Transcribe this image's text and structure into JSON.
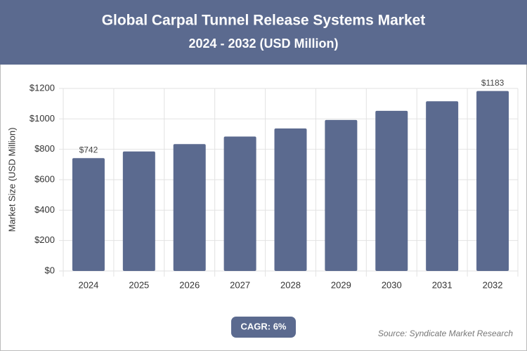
{
  "chart_data": {
    "type": "bar",
    "title": "Global Carpal Tunnel Release Systems Market",
    "subtitle": "2024 - 2032 (USD Million)",
    "y_label": "Market Size (USD Million)",
    "categories": [
      "2024",
      "2025",
      "2026",
      "2027",
      "2028",
      "2029",
      "2030",
      "2031",
      "2032"
    ],
    "values": [
      742,
      786,
      834,
      884,
      937,
      993,
      1053,
      1116,
      1183
    ],
    "value_labels": [
      "$742",
      null,
      null,
      null,
      null,
      null,
      null,
      null,
      "$1183"
    ],
    "color": "#5b6a8f",
    "ylim": [
      0,
      1200
    ],
    "yticks": [
      {
        "value": 0,
        "label": "$0"
      },
      {
        "value": 200,
        "label": "$200"
      },
      {
        "value": 400,
        "label": "$400"
      },
      {
        "value": 600,
        "label": "$600"
      },
      {
        "value": 800,
        "label": "$800"
      },
      {
        "value": 1000,
        "label": "$1000"
      },
      {
        "value": 1200,
        "label": "$1200"
      }
    ],
    "grid": true,
    "cagr": "CAGR: 6%",
    "source": "Source: Syndicate Market Research"
  }
}
